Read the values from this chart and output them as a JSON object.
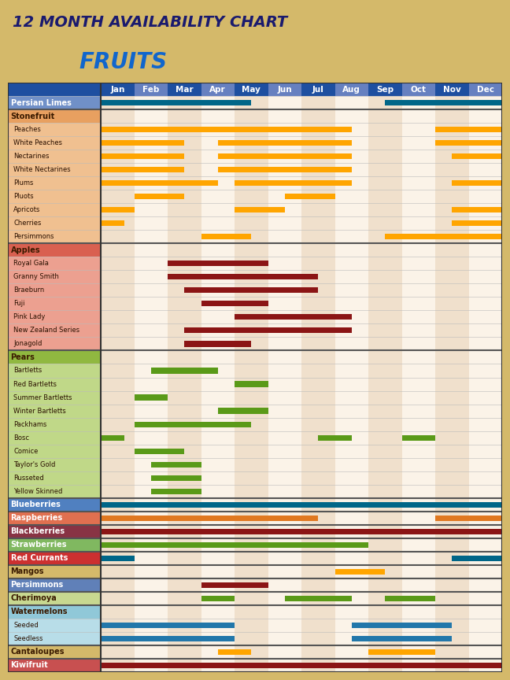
{
  "title1": "12 MONTH AVAILABILITY CHART",
  "title2": "FRUITS",
  "bg_color": "#D4B96A",
  "months": [
    "Jan",
    "Feb",
    "Mar",
    "Apr",
    "May",
    "Jun",
    "Jul",
    "Aug",
    "Sep",
    "Oct",
    "Nov",
    "Dec"
  ],
  "col_dark": "#1E4FA0",
  "col_light": "#6680C0",
  "rows": [
    {
      "label": "Persian Limes",
      "lbg": "#7090C8",
      "lfc": "#FFFFFF",
      "bold": true,
      "indent": false,
      "thick_above": false,
      "bars": [
        [
          1,
          5.5,
          "#006688"
        ],
        [
          9.5,
          13,
          "#006688"
        ]
      ]
    },
    {
      "label": "Stonefruit",
      "lbg": "#E8A060",
      "lfc": "#3A1A00",
      "bold": true,
      "indent": false,
      "thick_above": true,
      "bars": []
    },
    {
      "label": "Peaches",
      "lbg": "#F0C090",
      "lfc": "#3A1A00",
      "bold": false,
      "indent": true,
      "thick_above": false,
      "bars": [
        [
          1,
          8.5,
          "#FFA500"
        ],
        [
          11,
          13,
          "#FFA500"
        ]
      ]
    },
    {
      "label": "White Peaches",
      "lbg": "#F0C090",
      "lfc": "#3A1A00",
      "bold": false,
      "indent": true,
      "thick_above": false,
      "bars": [
        [
          1,
          3.5,
          "#FFA500"
        ],
        [
          4.5,
          8.5,
          "#FFA500"
        ],
        [
          11,
          13,
          "#FFA500"
        ]
      ]
    },
    {
      "label": "Nectarines",
      "lbg": "#F0C090",
      "lfc": "#3A1A00",
      "bold": false,
      "indent": true,
      "thick_above": false,
      "bars": [
        [
          1,
          3.5,
          "#FFA500"
        ],
        [
          4.5,
          8.5,
          "#FFA500"
        ],
        [
          11.5,
          13,
          "#FFA500"
        ]
      ]
    },
    {
      "label": "White Nectarines",
      "lbg": "#F0C090",
      "lfc": "#3A1A00",
      "bold": false,
      "indent": true,
      "thick_above": false,
      "bars": [
        [
          1,
          3.5,
          "#FFA500"
        ],
        [
          4.5,
          8.5,
          "#FFA500"
        ]
      ]
    },
    {
      "label": "Plums",
      "lbg": "#F0C090",
      "lfc": "#3A1A00",
      "bold": false,
      "indent": true,
      "thick_above": false,
      "bars": [
        [
          1,
          4.5,
          "#FFA500"
        ],
        [
          5,
          8.5,
          "#FFA500"
        ],
        [
          11.5,
          13,
          "#FFA500"
        ]
      ]
    },
    {
      "label": "Pluots",
      "lbg": "#F0C090",
      "lfc": "#3A1A00",
      "bold": false,
      "indent": true,
      "thick_above": false,
      "bars": [
        [
          2,
          3.5,
          "#FFA500"
        ],
        [
          6.5,
          8,
          "#FFA500"
        ]
      ]
    },
    {
      "label": "Apricots",
      "lbg": "#F0C090",
      "lfc": "#3A1A00",
      "bold": false,
      "indent": true,
      "thick_above": false,
      "bars": [
        [
          1,
          2,
          "#FFA500"
        ],
        [
          5,
          6.5,
          "#FFA500"
        ],
        [
          11.5,
          13,
          "#FFA500"
        ]
      ]
    },
    {
      "label": "Cherries",
      "lbg": "#F0C090",
      "lfc": "#3A1A00",
      "bold": false,
      "indent": true,
      "thick_above": false,
      "bars": [
        [
          1,
          1.7,
          "#FFA500"
        ],
        [
          11.5,
          13,
          "#FFA500"
        ]
      ]
    },
    {
      "label": "Persimmons",
      "lbg": "#F0C090",
      "lfc": "#3A1A00",
      "bold": false,
      "indent": true,
      "thick_above": false,
      "bars": [
        [
          4,
          5.5,
          "#FFA500"
        ],
        [
          9.5,
          13,
          "#FFA500"
        ]
      ]
    },
    {
      "label": "Apples",
      "lbg": "#D96050",
      "lfc": "#3A1A00",
      "bold": true,
      "indent": false,
      "thick_above": true,
      "bars": []
    },
    {
      "label": "Royal Gala",
      "lbg": "#ECA090",
      "lfc": "#3A1A00",
      "bold": false,
      "indent": true,
      "thick_above": false,
      "bars": [
        [
          3,
          6,
          "#8B1515"
        ]
      ]
    },
    {
      "label": "Granny Smith",
      "lbg": "#ECA090",
      "lfc": "#3A1A00",
      "bold": false,
      "indent": true,
      "thick_above": false,
      "bars": [
        [
          3,
          7.5,
          "#8B1515"
        ]
      ]
    },
    {
      "label": "Braeburn",
      "lbg": "#ECA090",
      "lfc": "#3A1A00",
      "bold": false,
      "indent": true,
      "thick_above": false,
      "bars": [
        [
          3.5,
          7.5,
          "#8B1515"
        ]
      ]
    },
    {
      "label": "Fuji",
      "lbg": "#ECA090",
      "lfc": "#3A1A00",
      "bold": false,
      "indent": true,
      "thick_above": false,
      "bars": [
        [
          4,
          6,
          "#8B1515"
        ]
      ]
    },
    {
      "label": "Pink Lady",
      "lbg": "#ECA090",
      "lfc": "#3A1A00",
      "bold": false,
      "indent": true,
      "thick_above": false,
      "bars": [
        [
          5,
          8.5,
          "#8B1515"
        ]
      ]
    },
    {
      "label": "New Zealand Series",
      "lbg": "#ECA090",
      "lfc": "#3A1A00",
      "bold": false,
      "indent": true,
      "thick_above": false,
      "bars": [
        [
          3.5,
          8.5,
          "#8B1515"
        ]
      ]
    },
    {
      "label": "Jonagold",
      "lbg": "#ECA090",
      "lfc": "#3A1A00",
      "bold": false,
      "indent": true,
      "thick_above": false,
      "bars": [
        [
          3.5,
          5.5,
          "#8B1515"
        ]
      ]
    },
    {
      "label": "Pears",
      "lbg": "#90B840",
      "lfc": "#3A1A00",
      "bold": true,
      "indent": false,
      "thick_above": true,
      "bars": []
    },
    {
      "label": "Bartletts",
      "lbg": "#C0D888",
      "lfc": "#3A1A00",
      "bold": false,
      "indent": true,
      "thick_above": false,
      "bars": [
        [
          2.5,
          4.5,
          "#5A9A18"
        ]
      ]
    },
    {
      "label": "Red Bartletts",
      "lbg": "#C0D888",
      "lfc": "#3A1A00",
      "bold": false,
      "indent": true,
      "thick_above": false,
      "bars": [
        [
          5,
          6,
          "#5A9A18"
        ]
      ]
    },
    {
      "label": "Summer Bartletts",
      "lbg": "#C0D888",
      "lfc": "#3A1A00",
      "bold": false,
      "indent": true,
      "thick_above": false,
      "bars": [
        [
          2,
          3,
          "#5A9A18"
        ]
      ]
    },
    {
      "label": "Winter Bartletts",
      "lbg": "#C0D888",
      "lfc": "#3A1A00",
      "bold": false,
      "indent": true,
      "thick_above": false,
      "bars": [
        [
          4.5,
          6,
          "#5A9A18"
        ]
      ]
    },
    {
      "label": "Packhams",
      "lbg": "#C0D888",
      "lfc": "#3A1A00",
      "bold": false,
      "indent": true,
      "thick_above": false,
      "bars": [
        [
          2,
          5.5,
          "#5A9A18"
        ]
      ]
    },
    {
      "label": "Bosc",
      "lbg": "#C0D888",
      "lfc": "#3A1A00",
      "bold": false,
      "indent": true,
      "thick_above": false,
      "bars": [
        [
          1,
          1.7,
          "#5A9A18"
        ],
        [
          7.5,
          8.5,
          "#5A9A18"
        ],
        [
          10,
          11,
          "#5A9A18"
        ]
      ]
    },
    {
      "label": "Comice",
      "lbg": "#C0D888",
      "lfc": "#3A1A00",
      "bold": false,
      "indent": true,
      "thick_above": false,
      "bars": [
        [
          2,
          3.5,
          "#5A9A18"
        ]
      ]
    },
    {
      "label": "Taylor's Gold",
      "lbg": "#C0D888",
      "lfc": "#3A1A00",
      "bold": false,
      "indent": true,
      "thick_above": false,
      "bars": [
        [
          2.5,
          4,
          "#5A9A18"
        ]
      ]
    },
    {
      "label": "Russeted",
      "lbg": "#C0D888",
      "lfc": "#3A1A00",
      "bold": false,
      "indent": true,
      "thick_above": false,
      "bars": [
        [
          2.5,
          4,
          "#5A9A18"
        ]
      ]
    },
    {
      "label": "Yellow Skinned",
      "lbg": "#C0D888",
      "lfc": "#3A1A00",
      "bold": false,
      "indent": true,
      "thick_above": false,
      "bars": [
        [
          2.5,
          4,
          "#5A9A18"
        ]
      ]
    },
    {
      "label": "Blueberries",
      "lbg": "#5080C0",
      "lfc": "#FFFFFF",
      "bold": true,
      "indent": false,
      "thick_above": true,
      "bars": [
        [
          1,
          13,
          "#006688"
        ]
      ]
    },
    {
      "label": "Raspberries",
      "lbg": "#E07050",
      "lfc": "#FFFFFF",
      "bold": true,
      "indent": false,
      "thick_above": true,
      "bars": [
        [
          1,
          7.5,
          "#E07820"
        ],
        [
          11,
          13,
          "#E07820"
        ]
      ]
    },
    {
      "label": "Blackberries",
      "lbg": "#883344",
      "lfc": "#FFFFFF",
      "bold": true,
      "indent": false,
      "thick_above": true,
      "bars": [
        [
          1,
          13,
          "#8B1515"
        ]
      ]
    },
    {
      "label": "Strawberries",
      "lbg": "#80B860",
      "lfc": "#FFFFFF",
      "bold": true,
      "indent": false,
      "thick_above": true,
      "bars": [
        [
          1,
          9,
          "#5A9A18"
        ]
      ]
    },
    {
      "label": "Red Currants",
      "lbg": "#CC3030",
      "lfc": "#FFFFFF",
      "bold": true,
      "indent": false,
      "thick_above": true,
      "bars": [
        [
          1,
          2,
          "#006688"
        ],
        [
          11.5,
          13,
          "#006688"
        ]
      ]
    },
    {
      "label": "Mangos",
      "lbg": "#D4B96A",
      "lfc": "#3A1A00",
      "bold": true,
      "indent": false,
      "thick_above": true,
      "bars": [
        [
          8,
          9.5,
          "#FFA500"
        ]
      ]
    },
    {
      "label": "Persimmons",
      "lbg": "#6080B8",
      "lfc": "#FFFFFF",
      "bold": true,
      "indent": false,
      "thick_above": true,
      "bars": [
        [
          4,
          6,
          "#8B1515"
        ]
      ]
    },
    {
      "label": "Cherimoya",
      "lbg": "#C8D890",
      "lfc": "#3A1A00",
      "bold": true,
      "indent": false,
      "thick_above": true,
      "bars": [
        [
          4,
          5,
          "#5A9A18"
        ],
        [
          6.5,
          8.5,
          "#5A9A18"
        ],
        [
          9.5,
          11,
          "#5A9A18"
        ]
      ]
    },
    {
      "label": "Watermelons",
      "lbg": "#90C8D8",
      "lfc": "#3A1A00",
      "bold": true,
      "indent": false,
      "thick_above": true,
      "bars": []
    },
    {
      "label": "Seeded",
      "lbg": "#B8DDE8",
      "lfc": "#3A1A00",
      "bold": false,
      "indent": true,
      "thick_above": false,
      "bars": [
        [
          1,
          5,
          "#2277AA"
        ],
        [
          8.5,
          11.5,
          "#2277AA"
        ]
      ]
    },
    {
      "label": "Seedless",
      "lbg": "#B8DDE8",
      "lfc": "#3A1A00",
      "bold": false,
      "indent": true,
      "thick_above": false,
      "bars": [
        [
          1,
          5,
          "#2277AA"
        ],
        [
          8.5,
          11.5,
          "#2277AA"
        ]
      ]
    },
    {
      "label": "Cantaloupes",
      "lbg": "#D4B96A",
      "lfc": "#3A1A00",
      "bold": true,
      "indent": false,
      "thick_above": true,
      "bars": [
        [
          4.5,
          5.5,
          "#FFA500"
        ],
        [
          9,
          11,
          "#FFA500"
        ]
      ]
    },
    {
      "label": "Kiwifruit",
      "lbg": "#C85050",
      "lfc": "#FFFFFF",
      "bold": true,
      "indent": false,
      "thick_above": true,
      "bars": [
        [
          1,
          13,
          "#8B1515"
        ]
      ]
    }
  ]
}
